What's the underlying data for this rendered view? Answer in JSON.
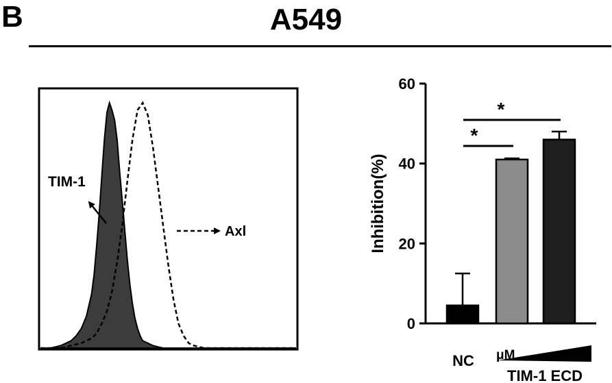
{
  "figure": {
    "panel_label": "B",
    "cell_line": "A549"
  },
  "chart_data": [
    {
      "type": "area",
      "annotations": [
        "TIM-1",
        "Axl"
      ],
      "series": [
        {
          "name": "TIM-1",
          "x": [
            0,
            0.04,
            0.08,
            0.12,
            0.14,
            0.16,
            0.18,
            0.2,
            0.21,
            0.22,
            0.23,
            0.24,
            0.25,
            0.26,
            0.27,
            0.28,
            0.29,
            0.3,
            0.31,
            0.32,
            0.33,
            0.34,
            0.35,
            0.36,
            0.37,
            0.38,
            0.39,
            0.4,
            0.42,
            0.44,
            0.46,
            0.48,
            0.52,
            0.56,
            0.6,
            1.0
          ],
          "y": [
            0,
            0,
            0.01,
            0.03,
            0.05,
            0.08,
            0.13,
            0.22,
            0.3,
            0.42,
            0.55,
            0.7,
            0.85,
            0.96,
            1.0,
            0.97,
            0.93,
            0.85,
            0.72,
            0.6,
            0.48,
            0.36,
            0.26,
            0.18,
            0.12,
            0.08,
            0.05,
            0.03,
            0.02,
            0.01,
            0.005,
            0,
            0,
            0,
            0,
            0
          ]
        },
        {
          "name": "Axl",
          "x": [
            0,
            0.08,
            0.12,
            0.16,
            0.2,
            0.22,
            0.24,
            0.26,
            0.28,
            0.3,
            0.32,
            0.34,
            0.36,
            0.38,
            0.4,
            0.42,
            0.44,
            0.46,
            0.48,
            0.5,
            0.52,
            0.54,
            0.56,
            0.58,
            0.6,
            0.64,
            1.0
          ],
          "y": [
            0,
            0,
            0.01,
            0.02,
            0.04,
            0.06,
            0.1,
            0.15,
            0.23,
            0.35,
            0.5,
            0.68,
            0.85,
            0.97,
            1.0,
            0.95,
            0.82,
            0.66,
            0.5,
            0.34,
            0.2,
            0.1,
            0.05,
            0.02,
            0.01,
            0,
            0
          ]
        }
      ]
    },
    {
      "type": "bar",
      "ylabel": "Inhibition(%)",
      "ylim": [
        0,
        60
      ],
      "yticks": [
        0,
        20,
        40,
        60
      ],
      "categories": [
        "NC",
        "",
        ""
      ],
      "values": [
        4.5,
        41,
        46
      ],
      "errors": [
        8,
        0.3,
        2
      ],
      "bar_colors": [
        "#000000",
        "#8c8c8c",
        "#1e1e1e"
      ],
      "significance": [
        {
          "from": 0,
          "to": 1,
          "label": "*"
        },
        {
          "from": 0,
          "to": 2,
          "label": "*"
        }
      ],
      "gradient_label": "μM",
      "group_label": "TIM-1 ECD"
    }
  ]
}
